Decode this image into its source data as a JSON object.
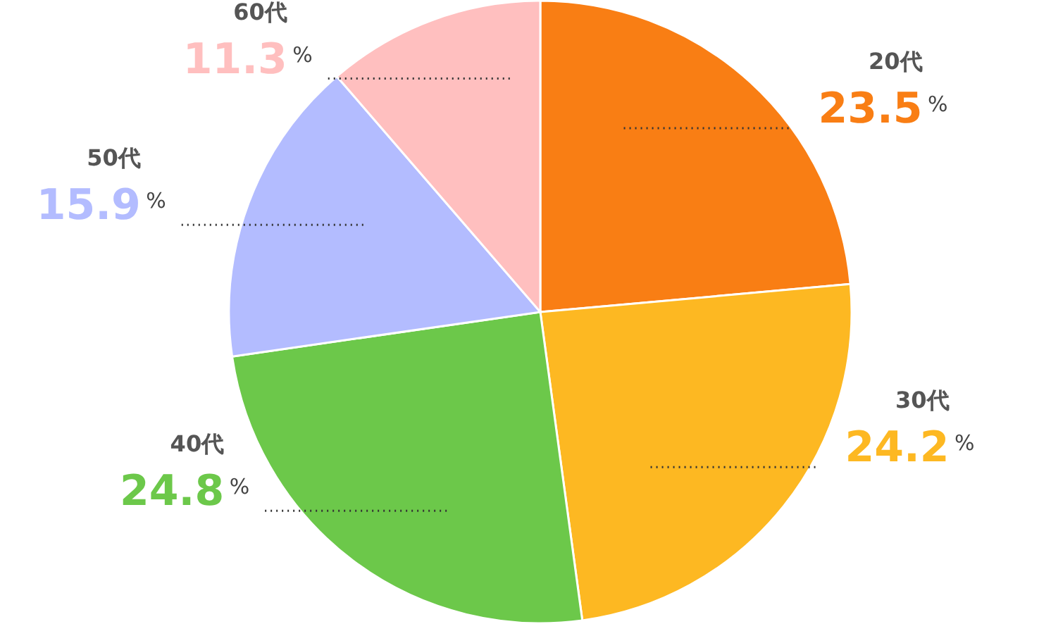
{
  "chart_data": {
    "type": "pie",
    "categories": [
      "20代",
      "30代",
      "40代",
      "50代",
      "60代"
    ],
    "values": [
      23.5,
      24.2,
      24.8,
      15.9,
      11.3
    ],
    "colors": [
      "#f97e14",
      "#fdb822",
      "#6cc84a",
      "#b3bcff",
      "#ffbfbf"
    ],
    "data_labels": true,
    "annotations": [
      "%",
      "%",
      "%",
      "%",
      "%"
    ]
  }
}
